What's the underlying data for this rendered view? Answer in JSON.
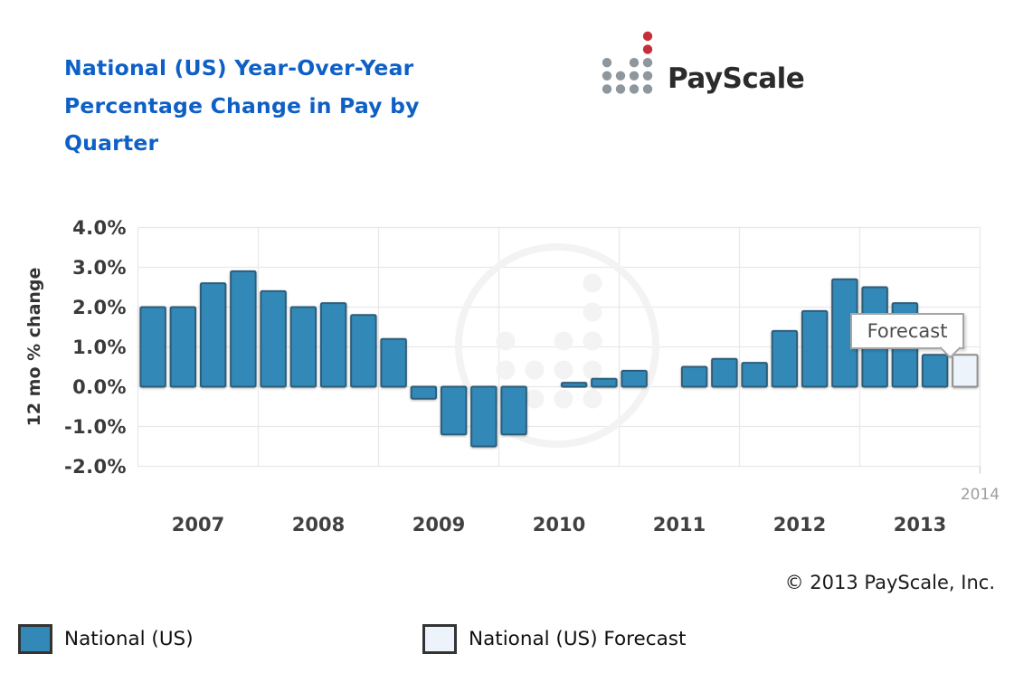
{
  "header": {
    "title": {
      "line1": "National (US) Year-Over-Year",
      "line2": "Percentage Change in Pay by",
      "line3": "Quarter",
      "color": "#0e60c6"
    },
    "logo": {
      "text": "PayScale",
      "dot_gray_color": "#8e979e",
      "dot_red_color": "#c4303a"
    }
  },
  "chart_data": {
    "type": "bar",
    "title": "National (US) Year-Over-Year Percentage Change in Pay by Quarter",
    "xlabel": "",
    "ylabel": "12 mo % change",
    "ylim": [
      -2.0,
      4.0
    ],
    "grid": true,
    "yticks": [
      4,
      3,
      2,
      1,
      0,
      -1,
      -2
    ],
    "ytick_labels": [
      "4.0%",
      "3.0%",
      "2.0%",
      "1.0%",
      "0.0%",
      "-1.0%",
      "-2.0%"
    ],
    "x_year_labels": [
      "2007",
      "2008",
      "2009",
      "2010",
      "2011",
      "2012",
      "2013"
    ],
    "x_axis_end_label": "2014",
    "bar_color": "#3289b8",
    "forecast_bar_color": "#ecf3fa",
    "series": [
      {
        "name": "National (US)",
        "color": "#3289b8"
      },
      {
        "name": "National (US) Forecast",
        "color": "#ecf3fa"
      }
    ],
    "quarters": [
      {
        "label": "2007 Q1",
        "value": 2.0
      },
      {
        "label": "2007 Q2",
        "value": 2.0
      },
      {
        "label": "2007 Q3",
        "value": 2.6
      },
      {
        "label": "2007 Q4",
        "value": 2.9
      },
      {
        "label": "2008 Q1",
        "value": 2.4
      },
      {
        "label": "2008 Q2",
        "value": 2.0
      },
      {
        "label": "2008 Q3",
        "value": 2.1
      },
      {
        "label": "2008 Q4",
        "value": 1.8
      },
      {
        "label": "2009 Q1",
        "value": 1.2
      },
      {
        "label": "2009 Q2",
        "value": -0.3
      },
      {
        "label": "2009 Q3",
        "value": -1.2
      },
      {
        "label": "2009 Q4",
        "value": -1.5
      },
      {
        "label": "2010 Q1",
        "value": -1.2
      },
      {
        "label": "2010 Q2",
        "value": 0.0
      },
      {
        "label": "2010 Q3",
        "value": 0.1
      },
      {
        "label": "2010 Q4",
        "value": 0.2
      },
      {
        "label": "2011 Q1",
        "value": 0.4
      },
      {
        "label": "2011 Q2",
        "value": 0.0
      },
      {
        "label": "2011 Q3",
        "value": 0.5
      },
      {
        "label": "2011 Q4",
        "value": 0.7
      },
      {
        "label": "2012 Q1",
        "value": 0.6
      },
      {
        "label": "2012 Q2",
        "value": 1.4
      },
      {
        "label": "2012 Q3",
        "value": 1.9
      },
      {
        "label": "2012 Q4",
        "value": 2.7
      },
      {
        "label": "2013 Q1",
        "value": 2.5
      },
      {
        "label": "2013 Q2",
        "value": 2.1
      },
      {
        "label": "2013 Q3",
        "value": 0.8
      },
      {
        "label": "2013 Q4",
        "value": 0.8,
        "forecast": true
      }
    ],
    "annotation": {
      "text": "Forecast",
      "target": "2013 Q4"
    },
    "legend_position": "bottom"
  },
  "footer": {
    "copyright": "© 2013 PayScale, Inc."
  }
}
